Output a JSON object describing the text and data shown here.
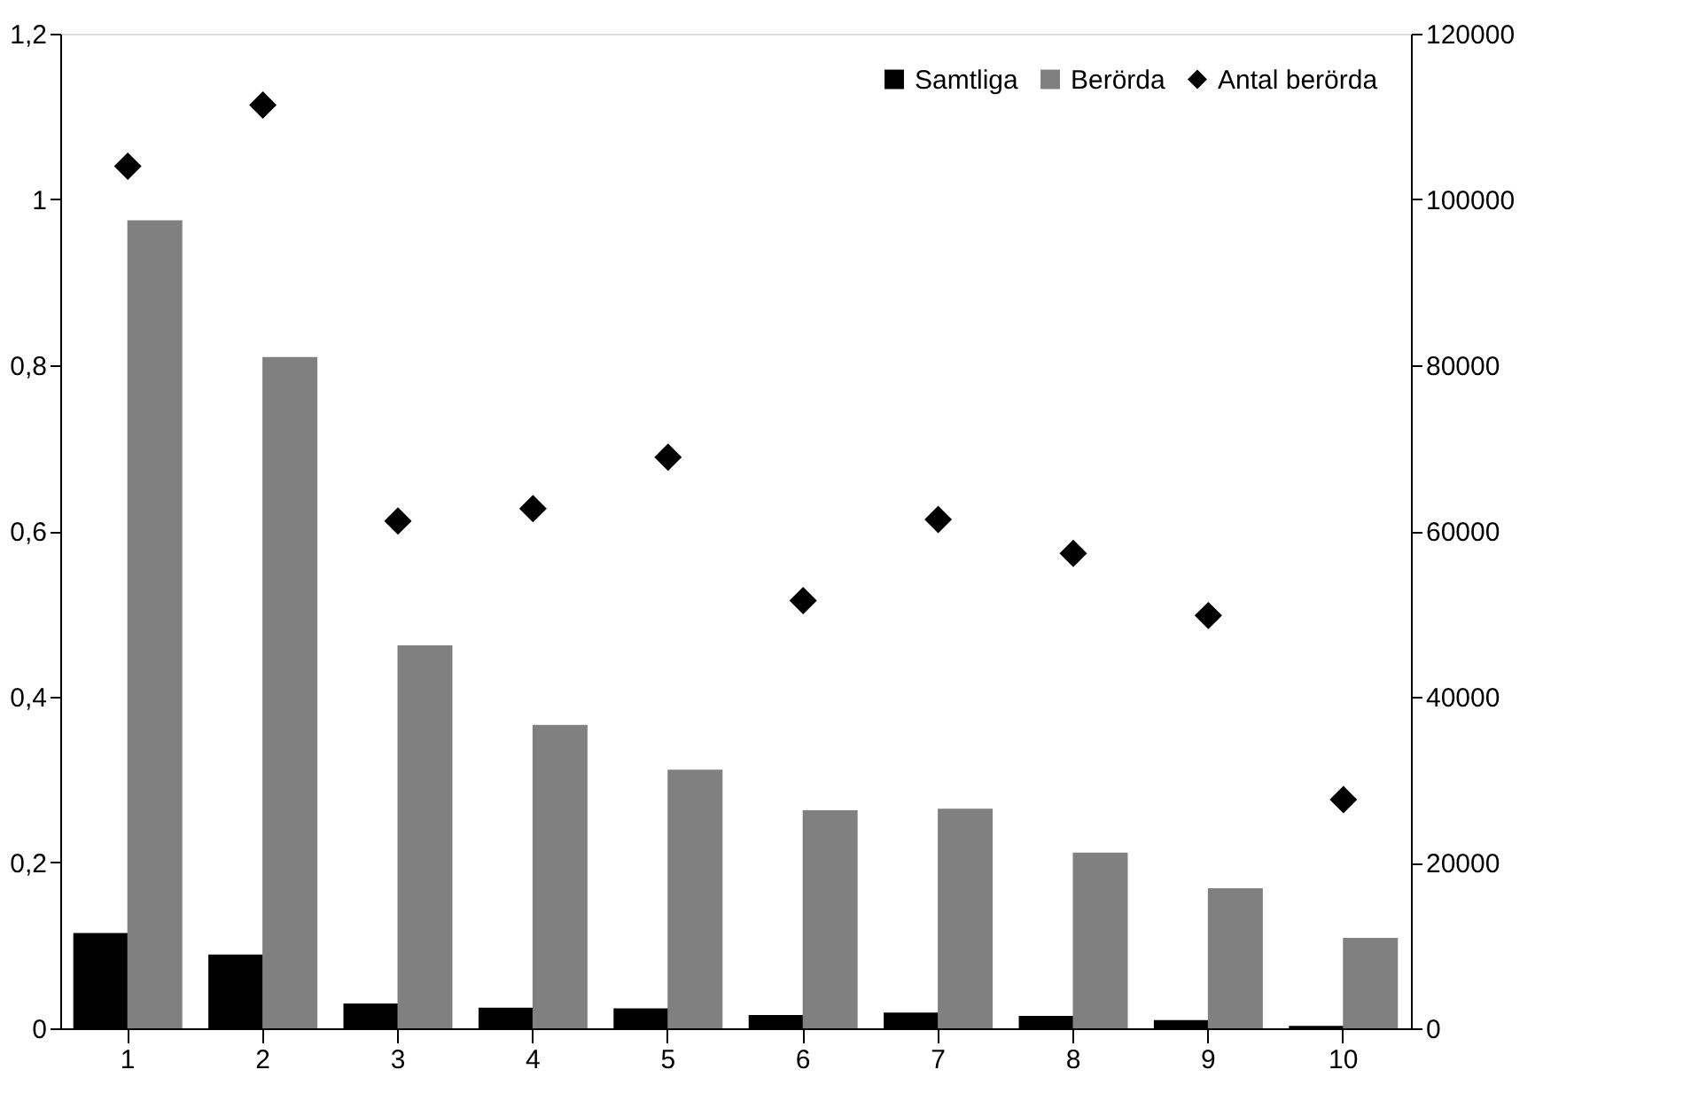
{
  "chart_data": {
    "type": "bar",
    "categories": [
      "1",
      "2",
      "3",
      "4",
      "5",
      "6",
      "7",
      "8",
      "9",
      "10"
    ],
    "series": [
      {
        "name": "Samtliga",
        "color": "#000000",
        "values": [
          0.115,
          0.089,
          0.03,
          0.025,
          0.024,
          0.016,
          0.019,
          0.015,
          0.01,
          0.003
        ]
      },
      {
        "name": "Berörda",
        "color": "#808080",
        "values": [
          0.975,
          0.81,
          0.462,
          0.366,
          0.312,
          0.263,
          0.265,
          0.212,
          0.169,
          0.109
        ]
      },
      {
        "name": "Antal berörda",
        "color": "#000000",
        "type": "scatter",
        "marker": "diamond",
        "axis": "y2",
        "values": [
          104000,
          111400,
          61200,
          62700,
          68900,
          51600,
          61400,
          57300,
          49800,
          27600
        ]
      }
    ],
    "ylim": [
      0,
      1.2
    ],
    "yticks": [
      {
        "value": 0,
        "label": "0"
      },
      {
        "value": 0.2,
        "label": "0,2"
      },
      {
        "value": 0.4,
        "label": "0,4"
      },
      {
        "value": 0.6,
        "label": "0,6"
      },
      {
        "value": 0.8,
        "label": "0,8"
      },
      {
        "value": 1,
        "label": "1"
      },
      {
        "value": 1.2,
        "label": "1,2"
      }
    ],
    "y2lim": [
      0,
      120000
    ],
    "y2ticks": [
      0,
      20000,
      40000,
      60000,
      80000,
      100000,
      120000
    ],
    "grid": false,
    "legend": "top right"
  }
}
